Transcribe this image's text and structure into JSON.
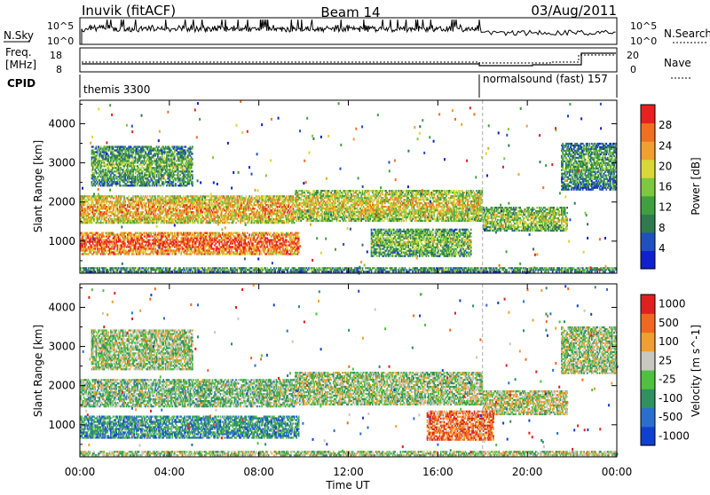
{
  "header": {
    "station": "Inuvik (fitACF)",
    "beam": "Beam 14",
    "date": "03/Aug/2011"
  },
  "strips": {
    "nsky_label": "N.Sky",
    "nsky_ticks": [
      "10^5",
      "10^0"
    ],
    "nsearch_label": "N.Search",
    "nsearch_ticks": [
      "10^5",
      "10^0"
    ],
    "freq_label": "Freq.",
    "freq_unit": "[MHz]",
    "freq_ticks": [
      "18",
      "8"
    ],
    "nave_label": "Nave",
    "nave_ticks": [
      "20",
      "0"
    ],
    "cpid_label": "CPID",
    "cpid_segments": [
      "themis 3300",
      "normalsound (fast) 157"
    ]
  },
  "colors": {
    "power_scale": [
      "#1020d0",
      "#2050c0",
      "#307a50",
      "#40a040",
      "#7ec840",
      "#d8d838",
      "#f0a030",
      "#f07020",
      "#e82020"
    ],
    "velocity_scale": [
      "#1040d0",
      "#2a6fd0",
      "#309060",
      "#50c040",
      "#c8c8c0",
      "#f0a030",
      "#f06820",
      "#e02020"
    ]
  },
  "chart_data": [
    {
      "type": "heatmap",
      "title": "",
      "xlabel": "Time UT",
      "ylabel": "Slant Range [km]",
      "colorbar_label": "Power [dB]",
      "x_ticks": [
        "00:00",
        "04:00",
        "08:00",
        "12:00",
        "16:00",
        "20:00",
        "00:00"
      ],
      "x_range_hours": [
        0,
        24
      ],
      "y_ticks": [
        1000,
        2000,
        3000,
        4000
      ],
      "y_range_km": [
        180,
        4600
      ],
      "colorbar_ticks": [
        4,
        8,
        12,
        16,
        20,
        24,
        28
      ],
      "regions": [
        {
          "t0": 0.0,
          "t1": 9.6,
          "r0": 1450,
          "r1": 2150,
          "level": 0.65
        },
        {
          "t0": 9.6,
          "t1": 18.0,
          "r0": 1500,
          "r1": 2300,
          "level": 0.55
        },
        {
          "t0": 18.0,
          "t1": 21.8,
          "r0": 1250,
          "r1": 1850,
          "level": 0.45
        },
        {
          "t0": 0.0,
          "t1": 9.8,
          "r0": 650,
          "r1": 1200,
          "level": 0.8
        },
        {
          "t0": 13.0,
          "t1": 17.5,
          "r0": 600,
          "r1": 1300,
          "level": 0.4
        },
        {
          "t0": 0.0,
          "t1": 24.0,
          "r0": 200,
          "r1": 330,
          "level": 0.3
        },
        {
          "t0": 21.5,
          "t1": 24.0,
          "r0": 2300,
          "r1": 3500,
          "level": 0.3
        },
        {
          "t0": 0.5,
          "t1": 5.0,
          "r0": 2400,
          "r1": 3400,
          "level": 0.35
        }
      ]
    },
    {
      "type": "heatmap",
      "title": "",
      "xlabel": "Time UT",
      "ylabel": "Slant Range [km]",
      "colorbar_label": "Velocity [m s^-1]",
      "x_ticks": [
        "00:00",
        "04:00",
        "08:00",
        "12:00",
        "16:00",
        "20:00",
        "00:00"
      ],
      "x_range_hours": [
        0,
        24
      ],
      "y_ticks": [
        1000,
        2000,
        3000,
        4000
      ],
      "y_range_km": [
        180,
        4600
      ],
      "colorbar_ticks": [
        1000,
        500,
        100,
        25,
        -25,
        -100,
        -500,
        -1000
      ],
      "regions": [
        {
          "t0": 0.0,
          "t1": 9.6,
          "r0": 1450,
          "r1": 2150,
          "level": 0.45
        },
        {
          "t0": 9.6,
          "t1": 18.0,
          "r0": 1500,
          "r1": 2350,
          "level": 0.5
        },
        {
          "t0": 18.0,
          "t1": 21.8,
          "r0": 1250,
          "r1": 1850,
          "level": 0.55
        },
        {
          "t0": 0.0,
          "t1": 9.8,
          "r0": 650,
          "r1": 1200,
          "level": 0.3
        },
        {
          "t0": 15.5,
          "t1": 18.5,
          "r0": 600,
          "r1": 1350,
          "level": 0.8
        },
        {
          "t0": 0.0,
          "t1": 24.0,
          "r0": 200,
          "r1": 330,
          "level": 0.5
        },
        {
          "t0": 21.5,
          "t1": 24.0,
          "r0": 2300,
          "r1": 3500,
          "level": 0.5
        },
        {
          "t0": 0.5,
          "t1": 5.0,
          "r0": 2400,
          "r1": 3400,
          "level": 0.5
        }
      ]
    }
  ]
}
